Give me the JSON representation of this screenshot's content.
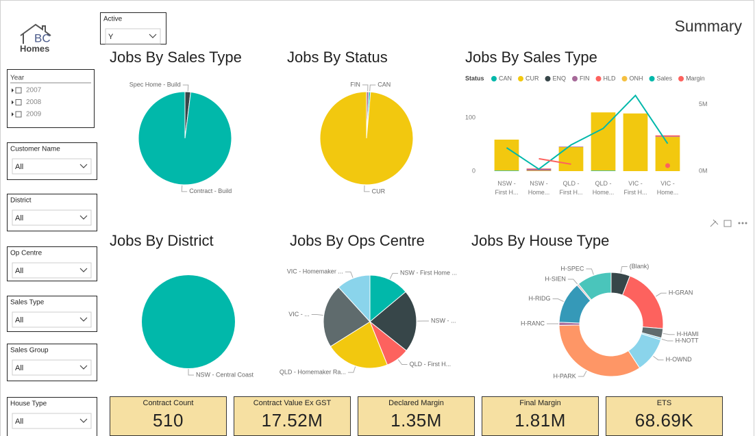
{
  "header": {
    "logo_text": "BC",
    "logo_subtext": "Homes",
    "title": "Summary"
  },
  "slicers": [
    {
      "label": "Active",
      "value": "Y"
    },
    {
      "label": "Customer Name",
      "value": "All"
    },
    {
      "label": "District",
      "value": "All"
    },
    {
      "label": "Op Centre",
      "value": "All"
    },
    {
      "label": "Sales Type",
      "value": "All"
    },
    {
      "label": "Sales Group",
      "value": "All"
    },
    {
      "label": "House Type",
      "value": "All"
    }
  ],
  "year_slicer": {
    "label": "Year",
    "items": [
      "2007",
      "2008",
      "2009"
    ]
  },
  "cards": [
    {
      "label": "Contract Count",
      "value": "510"
    },
    {
      "label": "Contract Value Ex GST",
      "value": "17.52M"
    },
    {
      "label": "Declared Margin",
      "value": "1.35M"
    },
    {
      "label": "Final Margin",
      "value": "1.81M"
    },
    {
      "label": "ETS",
      "value": "68.69K"
    }
  ],
  "chart_data": [
    {
      "type": "pie",
      "title": "Jobs By Sales Type",
      "categories": [
        "Spec Home - Build",
        "Contract - Build"
      ],
      "values": [
        10,
        500
      ],
      "colors": [
        "#374649",
        "#01B8AA"
      ]
    },
    {
      "type": "pie",
      "title": "Jobs By Status",
      "categories": [
        "FIN",
        "CAN",
        "CUR"
      ],
      "values": [
        4,
        3,
        503
      ],
      "colors": [
        "#A66999",
        "#01B8AA",
        "#F2C80F"
      ]
    },
    {
      "type": "combo",
      "title": "Jobs By Sales Type",
      "legend_title": "Status",
      "categories": [
        "NSW - First H...",
        "NSW - Home...",
        "QLD - First H...",
        "QLD - Home...",
        "VIC - First H...",
        "VIC - Home..."
      ],
      "ylim": [
        0,
        150
      ],
      "yticks": [
        0,
        100
      ],
      "y2lim": [
        0,
        6000000
      ],
      "y2ticks": [
        {
          "value": 0,
          "label": "0M"
        },
        {
          "value": 5000000,
          "label": "5M"
        }
      ],
      "grid": false,
      "series": [
        {
          "name": "CAN",
          "color": "#01B8AA",
          "values": [
            1,
            null,
            null,
            1,
            null,
            null
          ]
        },
        {
          "name": "CUR",
          "color": "#F2C80F",
          "values": [
            58,
            1,
            45,
            109,
            108,
            64
          ]
        },
        {
          "name": "ENQ",
          "color": "#374649",
          "values": [
            null,
            null,
            null,
            null,
            null,
            null
          ]
        },
        {
          "name": "FIN",
          "color": "#A66999",
          "values": [
            null,
            3,
            1,
            null,
            null,
            1
          ]
        },
        {
          "name": "HLD",
          "color": "#FD625E",
          "values": [
            null,
            1,
            null,
            null,
            null,
            2
          ]
        },
        {
          "name": "ONH",
          "color": "#F5C040",
          "values": [
            null,
            null,
            null,
            null,
            null,
            null
          ]
        },
        {
          "name": "Sales",
          "color": "#01B8AA",
          "axis": "y2",
          "values": [
            1750000,
            150000,
            1960000,
            3200000,
            5670000,
            2060000
          ]
        },
        {
          "name": "Margin",
          "color": "#FD625E",
          "axis": "y2",
          "values": [
            null,
            930000,
            520000,
            null,
            null,
            410000
          ]
        }
      ]
    },
    {
      "type": "pie",
      "title": "Jobs By District",
      "categories": [
        "NSW - Central Coast"
      ],
      "values": [
        510
      ],
      "colors": [
        "#01B8AA"
      ]
    },
    {
      "type": "pie",
      "title": "Jobs By Ops Centre",
      "categories": [
        "NSW - First Home ...",
        "NSW - ...",
        "QLD - First H...",
        "QLD - Homemaker Ra...",
        "VIC - ...",
        "VIC - Homemaker ..."
      ],
      "values": [
        71,
        111,
        42,
        113,
        113,
        60
      ],
      "colors": [
        "#01B8AA",
        "#374649",
        "#FD625E",
        "#F2C80F",
        "#5F6B6D",
        "#8AD4EB"
      ]
    },
    {
      "type": "donut",
      "title": "Jobs By House Type",
      "categories": [
        "(Blank)",
        "H-GRAN",
        "H-HAMI",
        "H-NOTT",
        "H-OWND",
        "H-PARK",
        "H-RANC",
        "H-RIDG",
        "H-SIEN",
        "H-SPEC"
      ],
      "values": [
        30,
        104,
        15,
        3,
        56,
        173,
        5,
        66,
        3,
        55
      ],
      "colors": [
        "#374649",
        "#FD625E",
        "#5F6B6D",
        "#8AD4EB",
        "#8AD4EB",
        "#FE9666",
        "#A66999",
        "#3599B8",
        "#DFBFBF",
        "#4AC5BB"
      ]
    }
  ]
}
